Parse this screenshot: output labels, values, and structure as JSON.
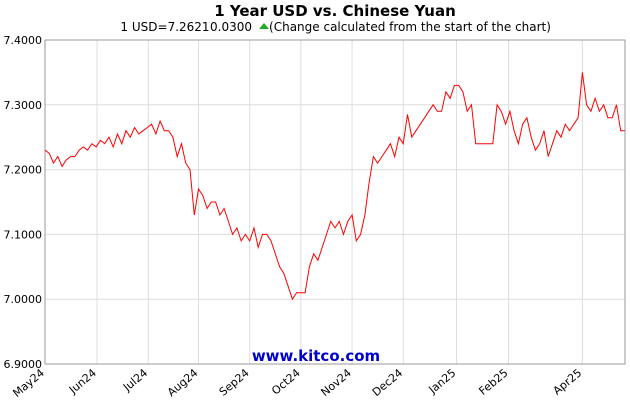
{
  "chart_data": {
    "type": "line",
    "title": "1 Year USD vs. Chinese Yuan",
    "subtitle_rate": "1 USD=7.2621",
    "subtitle_change": "0.0300",
    "subtitle_note": "(Change calculated from the start of the chart)",
    "watermark": "www.kitco.com",
    "xlim": [
      0,
      136
    ],
    "xticks": [
      {
        "value": 0,
        "label": "May24"
      },
      {
        "value": 12.2,
        "label": "Jun24"
      },
      {
        "value": 24.2,
        "label": "Jul24"
      },
      {
        "value": 36,
        "label": "Aug24"
      },
      {
        "value": 48,
        "label": "Sep24"
      },
      {
        "value": 60,
        "label": "Oct24"
      },
      {
        "value": 72,
        "label": "Nov24"
      },
      {
        "value": 84,
        "label": "Dec24"
      },
      {
        "value": 96.5,
        "label": "Jan25"
      },
      {
        "value": 108.7,
        "label": "Feb25"
      },
      {
        "value": 126,
        "label": "Apr25"
      }
    ],
    "ylim": [
      6.9,
      7.4
    ],
    "yticks": [
      {
        "value": 6.9,
        "label": "6.9000"
      },
      {
        "value": 7.0,
        "label": "7.0000"
      },
      {
        "value": 7.1,
        "label": "7.1000"
      },
      {
        "value": 7.2,
        "label": "7.2000"
      },
      {
        "value": 7.3,
        "label": "7.3000"
      },
      {
        "value": 7.4,
        "label": "7.4000"
      }
    ],
    "grid": true,
    "color": "#ff0000",
    "values": [
      7.23,
      7.225,
      7.21,
      7.22,
      7.205,
      7.215,
      7.22,
      7.22,
      7.23,
      7.235,
      7.23,
      7.24,
      7.235,
      7.245,
      7.24,
      7.25,
      7.235,
      7.255,
      7.24,
      7.26,
      7.25,
      7.265,
      7.255,
      7.26,
      7.265,
      7.27,
      7.255,
      7.275,
      7.26,
      7.26,
      7.25,
      7.22,
      7.24,
      7.21,
      7.2,
      7.13,
      7.17,
      7.16,
      7.14,
      7.15,
      7.15,
      7.13,
      7.14,
      7.12,
      7.1,
      7.11,
      7.09,
      7.1,
      7.09,
      7.11,
      7.08,
      7.1,
      7.1,
      7.09,
      7.07,
      7.05,
      7.04,
      7.02,
      7.0,
      7.01,
      7.01,
      7.01,
      7.05,
      7.07,
      7.06,
      7.08,
      7.1,
      7.12,
      7.11,
      7.12,
      7.1,
      7.12,
      7.13,
      7.09,
      7.1,
      7.13,
      7.18,
      7.22,
      7.21,
      7.22,
      7.23,
      7.24,
      7.22,
      7.25,
      7.24,
      7.285,
      7.25,
      7.26,
      7.27,
      7.28,
      7.29,
      7.3,
      7.29,
      7.29,
      7.32,
      7.31,
      7.33,
      7.33,
      7.32,
      7.29,
      7.3,
      7.24,
      7.24,
      7.24,
      7.24,
      7.24,
      7.3,
      7.29,
      7.27,
      7.29,
      7.26,
      7.24,
      7.27,
      7.28,
      7.25,
      7.23,
      7.24,
      7.26,
      7.22,
      7.24,
      7.26,
      7.25,
      7.27,
      7.26,
      7.27,
      7.28,
      7.35,
      7.3,
      7.29,
      7.31,
      7.29,
      7.3,
      7.28,
      7.28,
      7.3,
      7.26,
      7.26
    ]
  }
}
